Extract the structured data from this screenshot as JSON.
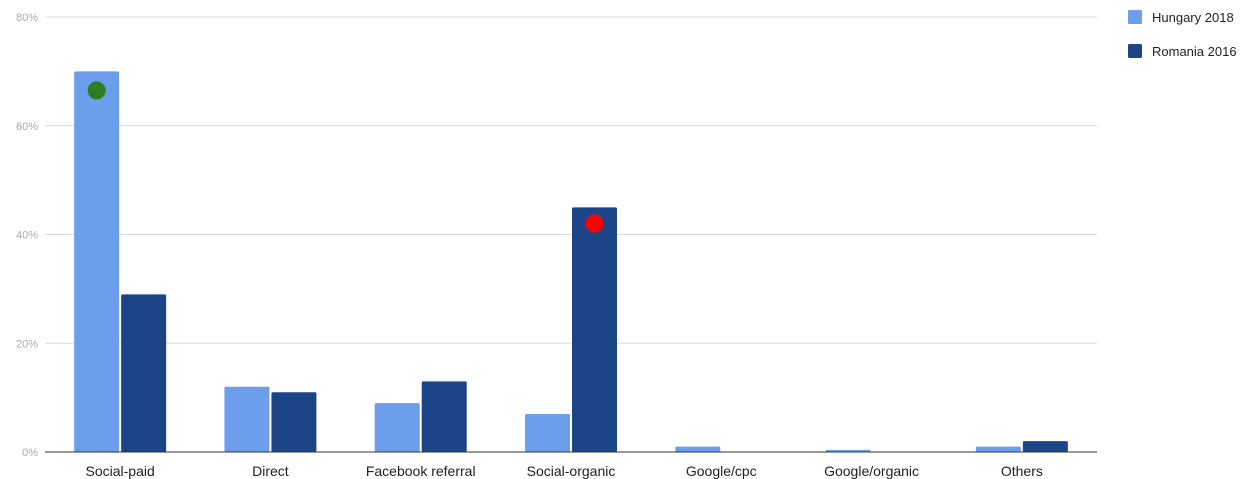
{
  "chart_data": {
    "type": "bar",
    "categories": [
      "Social-paid",
      "Direct",
      "Facebook referral",
      "Social-organic",
      "Google/cpc",
      "Google/organic",
      "Others"
    ],
    "series": [
      {
        "name": "Hungary 2018",
        "color": "#6d9eeb",
        "values": [
          70,
          12,
          9,
          7,
          1,
          0.4,
          1
        ]
      },
      {
        "name": "Romania 2016",
        "color": "#1c4587",
        "values": [
          29,
          11,
          13,
          45,
          0,
          0,
          2
        ]
      }
    ],
    "yticks": [
      "0%",
      "20%",
      "40%",
      "60%",
      "80%"
    ],
    "ylim": [
      0,
      80
    ],
    "grid": true,
    "legend_position": "top-right",
    "markers": [
      {
        "category": "Social-paid",
        "series": "Hungary 2018",
        "value": 66.5,
        "color": "#2e7d1e"
      },
      {
        "category": "Social-organic",
        "series": "Romania 2016",
        "value": 42,
        "color": "#ff0000"
      }
    ]
  }
}
